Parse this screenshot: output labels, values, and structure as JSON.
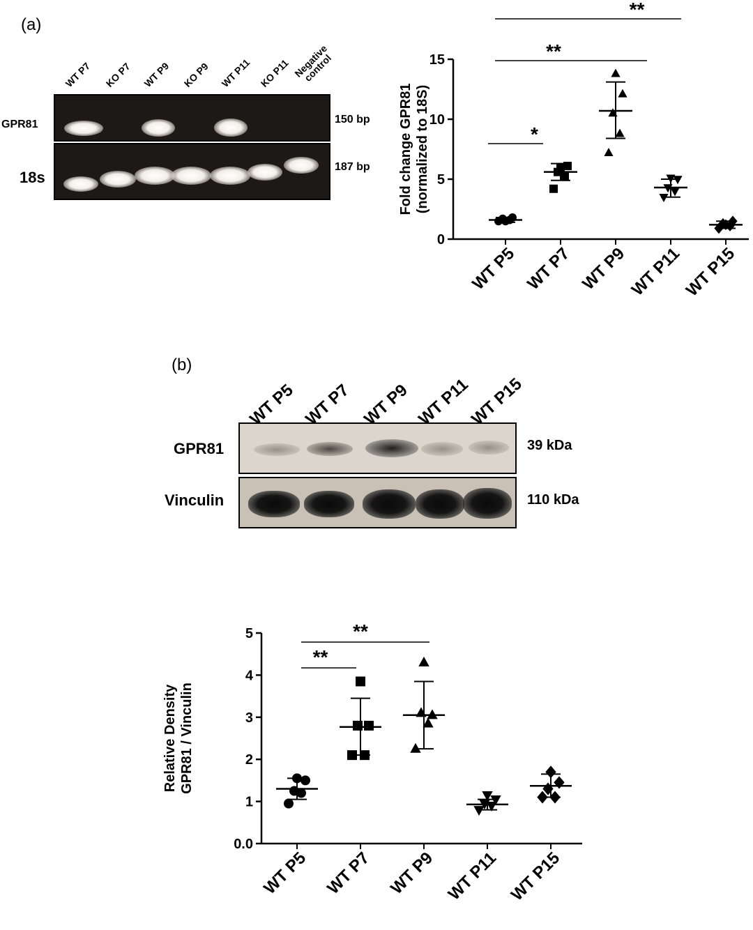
{
  "panel_a": {
    "label": "(a)",
    "gel": {
      "lanes": [
        "WT P7",
        "KO P7",
        "WT P9",
        "KO P9",
        "WT P11",
        "KO P11",
        "Negative control"
      ],
      "rows": [
        {
          "name": "GPR81",
          "size": "150 bp"
        },
        {
          "name": "18s",
          "size": "187 bp"
        }
      ]
    }
  },
  "panel_b": {
    "label": "(b)",
    "blot": {
      "lanes": [
        "WT P5",
        "WT P7",
        "WT P9",
        "WT P11",
        "WT P15"
      ],
      "rows": [
        {
          "name": "GPR81",
          "size": "39 kDa"
        },
        {
          "name": "Vinculin",
          "size": "110 kDa"
        }
      ]
    }
  },
  "chart_data": [
    {
      "type": "scatter",
      "title": "",
      "ylabel": "Fold  change GPR81\n(normalized to 18S)",
      "xlabel": "",
      "categories": [
        "WT P5",
        "WT P7",
        "WT P9",
        "WT P11",
        "WT P15"
      ],
      "ylim": [
        0,
        15
      ],
      "yticks": [
        0,
        5,
        10,
        15
      ],
      "markers": [
        "circle",
        "square",
        "triangle-up",
        "triangle-down",
        "diamond"
      ],
      "points": [
        [
          1.5,
          1.6,
          1.7,
          1.8,
          1.5
        ],
        [
          4.2,
          5.2,
          5.6,
          6.1,
          6.0
        ],
        [
          7.2,
          8.8,
          10.5,
          12.1,
          13.8
        ],
        [
          3.5,
          4.0,
          4.3,
          5.0,
          5.1
        ],
        [
          0.9,
          1.1,
          1.3,
          1.5,
          1.2
        ]
      ],
      "mean": [
        1.6,
        5.6,
        10.7,
        4.3,
        1.2
      ],
      "sd_low": [
        1.4,
        4.9,
        8.4,
        3.5,
        0.9
      ],
      "sd_high": [
        1.8,
        6.3,
        13.1,
        5.0,
        1.5
      ],
      "significance": [
        {
          "from": "WT P5",
          "to": "WT P7",
          "label": "*"
        },
        {
          "from": "WT P5",
          "to": "WT P9",
          "label": "**"
        },
        {
          "from": "WT P5",
          "to": "WT P11",
          "label": "**"
        }
      ]
    },
    {
      "type": "scatter",
      "title": "",
      "ylabel": "Relative Density\nGPR81 / Vinculin",
      "xlabel": "",
      "categories": [
        "WT P5",
        "WT P7",
        "WT P9",
        "WT P11",
        "WT P15"
      ],
      "ylim": [
        0,
        5
      ],
      "yticks": [
        "0.0",
        "1",
        "2",
        "3",
        "4",
        "5"
      ],
      "markers": [
        "circle",
        "square",
        "triangle-up",
        "triangle-down",
        "diamond"
      ],
      "points": [
        [
          0.95,
          1.2,
          1.25,
          1.5,
          1.55
        ],
        [
          2.1,
          2.1,
          2.8,
          2.8,
          3.85
        ],
        [
          2.25,
          2.85,
          3.1,
          3.05,
          4.3
        ],
        [
          0.8,
          0.9,
          0.95,
          1.05,
          1.15
        ],
        [
          1.1,
          1.1,
          1.3,
          1.45,
          1.7
        ]
      ],
      "mean": [
        1.3,
        2.77,
        3.05,
        0.93,
        1.37
      ],
      "sd_low": [
        1.05,
        2.1,
        2.25,
        0.8,
        1.1
      ],
      "sd_high": [
        1.55,
        3.45,
        3.85,
        1.05,
        1.65
      ],
      "significance": [
        {
          "from": "WT P5",
          "to": "WT P7",
          "label": "**"
        },
        {
          "from": "WT P5",
          "to": "WT P9",
          "label": "**"
        }
      ]
    }
  ]
}
